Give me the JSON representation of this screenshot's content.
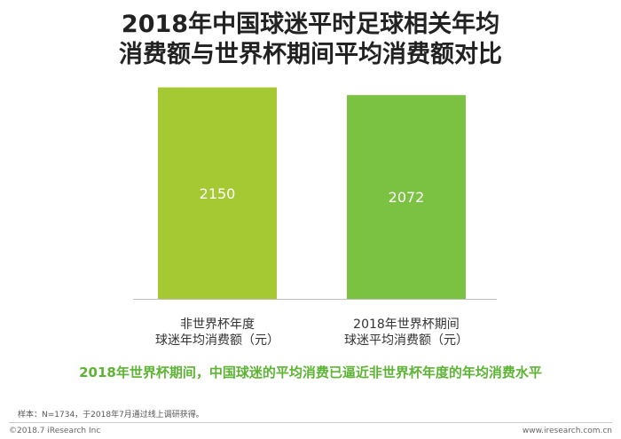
{
  "header": {
    "title_line1": "2018年中国球迷平时足球相关年均",
    "title_line2": "消费额与世界杯期间平均消费额对比"
  },
  "chart_data": {
    "type": "bar",
    "categories": [
      [
        "非世界杯年度",
        "球迷年均消费额（元）"
      ],
      [
        "2018年世界杯期间",
        "球迷平均消费额（元）"
      ]
    ],
    "values": [
      2150,
      2072
    ],
    "data_labels": [
      "2150",
      "2072"
    ],
    "colors": [
      "#a5c932",
      "#7cc242"
    ],
    "ylim": [
      0,
      2200
    ],
    "grid": false,
    "legend": "none"
  },
  "note": {
    "text": "2018年世界杯期间，中国球迷的平均消费已逼近非世界杯年度的年均消费水平",
    "color": "#5db334"
  },
  "footer": {
    "sample": "样本：N=1734，于2018年7月通过线上调研获得。",
    "copyright": "©2018.7 iResearch Inc",
    "website": "www.iresearch.com.cn"
  }
}
